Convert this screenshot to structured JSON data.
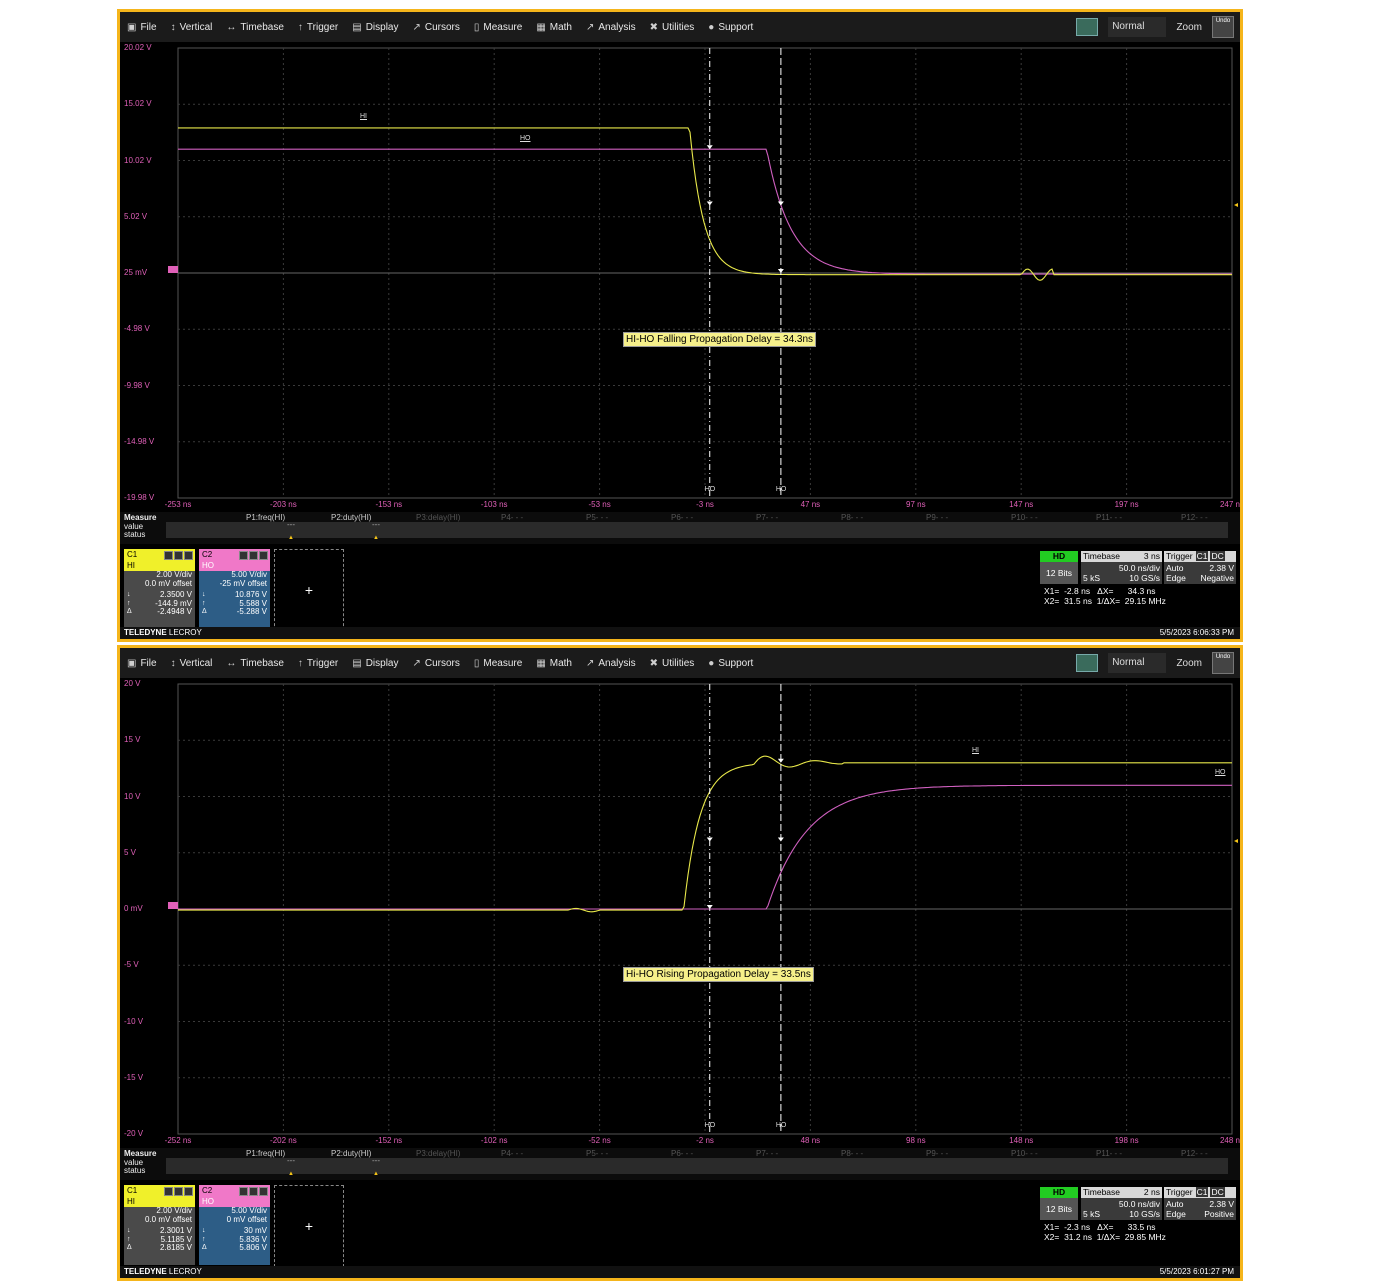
{
  "menu": [
    {
      "icon": "file-icon",
      "label": "File"
    },
    {
      "icon": "vertical-icon",
      "label": "Vertical"
    },
    {
      "icon": "timebase-icon",
      "label": "Timebase"
    },
    {
      "icon": "trigger-icon",
      "label": "Trigger"
    },
    {
      "icon": "display-icon",
      "label": "Display"
    },
    {
      "icon": "cursors-icon",
      "label": "Cursors"
    },
    {
      "icon": "measure-icon",
      "label": "Measure"
    },
    {
      "icon": "math-icon",
      "label": "Math"
    },
    {
      "icon": "analysis-icon",
      "label": "Analysis"
    },
    {
      "icon": "utilities-icon",
      "label": "Utilities"
    },
    {
      "icon": "support-icon",
      "label": "Support"
    }
  ],
  "trigger_mode": "Normal",
  "zoom_label": "Zoom",
  "undo_label": "Undo",
  "brand": {
    "bold": "TELEDYNE",
    "rest": " LECROY"
  },
  "measure": {
    "title": "Measure",
    "rows": [
      "value",
      "status"
    ],
    "params": [
      "P1:freq(HI)",
      "P2:duty(HI)",
      "P3:delay(HI)",
      "P4- - -",
      "P5- - -",
      "P6- - -",
      "P7- - -",
      "P8- - -",
      "P9- - -",
      "P10- - -",
      "P11- - -",
      "P12- - -"
    ]
  },
  "trace_labels": {
    "hi": "HI",
    "ho": "HO"
  },
  "screens": [
    {
      "y_labels": [
        "20.02 V",
        "15.02 V",
        "10.02 V",
        "5.02 V",
        "25 mV",
        "-4.98 V",
        "-9.98 V",
        "-14.98 V",
        "-19.98 V"
      ],
      "x_labels": [
        "-253 ns",
        "-203 ns",
        "-153 ns",
        "-103 ns",
        "-53 ns",
        "-3 ns",
        "47 ns",
        "97 ns",
        "147 ns",
        "197 ns",
        "247 ns"
      ],
      "annotation": "HI-HO Falling Propagation Delay = 34.3ns",
      "c1": {
        "name": "C1",
        "label": "HI",
        "vdiv": "2.00 V/div",
        "offset": "0.0 mV offset",
        "v1": "2.3500 V",
        "v2": "-144.9 mV",
        "dv": "-2.4948 V"
      },
      "c2": {
        "name": "C2",
        "label": "HO",
        "vdiv": "5.00 V/div",
        "offset": "-25 mV offset",
        "v1": "10.876 V",
        "v2": "5.588 V",
        "dv": "-5.288 V"
      },
      "tb": {
        "hd": "HD",
        "bits": "12 Bits",
        "timebase": "Timebase",
        "tb_val": "3 ns",
        "ns_div": "50.0 ns/div",
        "ks": "5 kS",
        "rate": "10 GS/s",
        "trigger": "Trigger",
        "trig_ch": "C1",
        "trig_dc": "DC",
        "mode": "Auto",
        "level": "2.38 V",
        "type": "Edge",
        "slope": "Negative"
      },
      "cursors": "X1=  -2.8 ns   ΔX=      34.3 ns\nX2=  31.5 ns  1/ΔX=  29.15 MHz",
      "timestamp": "5/5/2023 6:06:33 PM"
    },
    {
      "y_labels": [
        "20 V",
        "15 V",
        "10 V",
        "5 V",
        "0 mV",
        "-5 V",
        "-10 V",
        "-15 V",
        "-20 V"
      ],
      "x_labels": [
        "-252 ns",
        "-202 ns",
        "-152 ns",
        "-102 ns",
        "-52 ns",
        "-2 ns",
        "48 ns",
        "98 ns",
        "148 ns",
        "198 ns",
        "248 ns"
      ],
      "annotation": "Hi-HO Rising Propagation Delay = 33.5ns",
      "c1": {
        "name": "C1",
        "label": "HI",
        "vdiv": "2.00 V/div",
        "offset": "0.0 mV offset",
        "v1": "2.3001 V",
        "v2": "5.1185 V",
        "dv": "2.8185 V"
      },
      "c2": {
        "name": "C2",
        "label": "HO",
        "vdiv": "5.00 V/div",
        "offset": "0 mV offset",
        "v1": "30 mV",
        "v2": "5.836 V",
        "dv": "5.806 V"
      },
      "tb": {
        "hd": "HD",
        "bits": "12 Bits",
        "timebase": "Timebase",
        "tb_val": "2 ns",
        "ns_div": "50.0 ns/div",
        "ks": "5 kS",
        "rate": "10 GS/s",
        "trigger": "Trigger",
        "trig_ch": "C1",
        "trig_dc": "DC",
        "mode": "Auto",
        "level": "2.38 V",
        "type": "Edge",
        "slope": "Positive"
      },
      "cursors": "X1=  -2.3 ns   ΔX=      33.5 ns\nX2=  31.2 ns  1/ΔX=  29.85 MHz",
      "timestamp": "5/5/2023 6:01:27 PM"
    }
  ]
}
